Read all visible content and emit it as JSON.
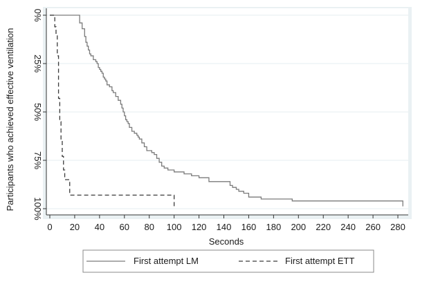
{
  "chart_data": {
    "type": "line",
    "title": "",
    "xlabel": "Seconds",
    "ylabel": "Participants who achieved effective ventilation",
    "xlim": [
      0,
      285
    ],
    "ylim": [
      0,
      100
    ],
    "y_inverted": true,
    "x_ticks": [
      0,
      20,
      40,
      60,
      80,
      100,
      120,
      140,
      160,
      180,
      200,
      220,
      240,
      260,
      280
    ],
    "y_ticks": [
      {
        "value": 0,
        "label": "0%"
      },
      {
        "value": 25,
        "label": "25%"
      },
      {
        "value": 50,
        "label": "50%"
      },
      {
        "value": 75,
        "label": "75%"
      },
      {
        "value": 100,
        "label": "100%"
      }
    ],
    "grid": "horizontal",
    "legend": "bottom",
    "series": [
      {
        "name": "First attempt LM",
        "style": "solid",
        "color": "#7a7a7a",
        "x": [
          0,
          24,
          26,
          28,
          29,
          30,
          31,
          32,
          33,
          35,
          37,
          38,
          39,
          40,
          41,
          42,
          43,
          44,
          45,
          46,
          48,
          50,
          51,
          53,
          55,
          57,
          58,
          59,
          60,
          61,
          62,
          63,
          64,
          66,
          68,
          70,
          71,
          72,
          74,
          76,
          78,
          80,
          82,
          84,
          86,
          88,
          90,
          92,
          95,
          100,
          108,
          114,
          120,
          128,
          140,
          145,
          147,
          150,
          152,
          156,
          160,
          170,
          195,
          284
        ],
        "y": [
          0,
          4,
          7,
          11,
          14,
          16,
          18,
          20,
          21,
          23,
          24,
          25,
          27,
          28,
          29,
          30,
          32,
          33,
          34,
          36,
          37,
          39,
          40,
          42,
          44,
          46,
          48,
          50,
          52,
          54,
          55,
          56,
          58,
          60,
          61,
          62,
          63,
          64,
          66,
          68,
          70,
          70,
          71,
          72,
          74,
          76,
          78,
          79,
          80,
          81,
          82,
          83,
          84,
          86,
          86,
          88,
          89,
          90,
          91,
          92,
          94,
          95,
          96,
          97
        ]
      },
      {
        "name": "First attempt ETT",
        "style": "dashed",
        "color": "#3a3a3a",
        "x": [
          0,
          4,
          5,
          6,
          7,
          8,
          9,
          10,
          11,
          12,
          14,
          16,
          100
        ],
        "y": [
          0,
          6,
          10,
          21,
          43,
          55,
          64,
          73,
          80,
          85,
          85,
          93,
          93
        ]
      }
    ]
  }
}
